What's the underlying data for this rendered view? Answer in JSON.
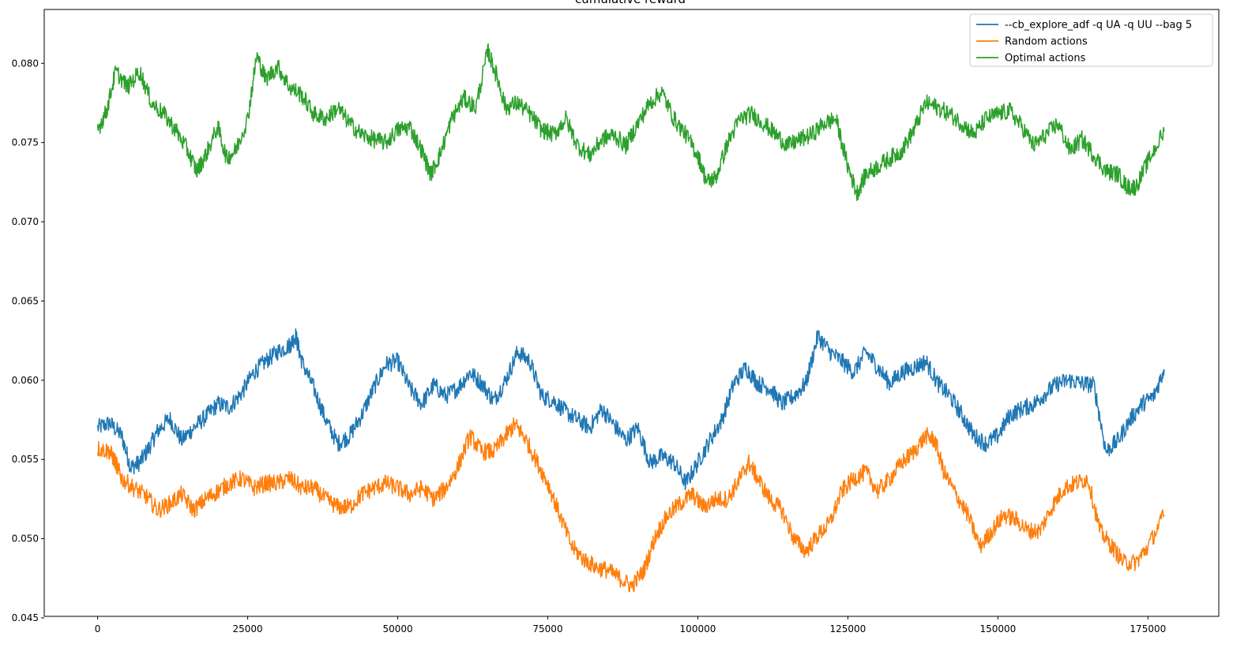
{
  "chart_data": {
    "type": "line",
    "title": "cumulative reward",
    "xlabel": "",
    "ylabel": "",
    "xlim": [
      -8900,
      186800
    ],
    "ylim": [
      0.0451,
      0.0834
    ],
    "xticks": [
      0,
      25000,
      50000,
      75000,
      100000,
      125000,
      150000,
      175000
    ],
    "xtick_labels": [
      "0",
      "25000",
      "50000",
      "75000",
      "100000",
      "125000",
      "150000",
      "175000"
    ],
    "yticks": [
      0.045,
      0.05,
      0.055,
      0.06,
      0.065,
      0.07,
      0.075,
      0.08
    ],
    "ytick_labels": [
      "0.045",
      "0.050",
      "0.055",
      "0.060",
      "0.065",
      "0.070",
      "0.075",
      "0.080"
    ],
    "grid": false,
    "legend_position": "top-right",
    "series": [
      {
        "name": "--cb_explore_adf -q UA -q UU --bag 5",
        "color": "#1f77b4",
        "x": [
          0,
          2000,
          4000,
          5500,
          7000,
          8500,
          10000,
          12000,
          14000,
          16000,
          18000,
          20000,
          22000,
          24000,
          26000,
          28000,
          30000,
          32000,
          33000,
          34000,
          36000,
          38000,
          40000,
          42000,
          44000,
          46000,
          48000,
          50000,
          52000,
          54000,
          56000,
          58000,
          60000,
          62000,
          64000,
          66000,
          68000,
          70000,
          72000,
          74000,
          76000,
          78000,
          80000,
          82000,
          84000,
          86000,
          88000,
          90000,
          92000,
          94000,
          96000,
          98000,
          100000,
          102000,
          104000,
          106000,
          108000,
          110000,
          112000,
          114000,
          116000,
          118000,
          120000,
          122000,
          124000,
          126000,
          128000,
          130000,
          132000,
          134000,
          136000,
          138000,
          140000,
          142000,
          144000,
          146000,
          148000,
          150000,
          152000,
          154000,
          156000,
          158000,
          160000,
          162000,
          164000,
          166000,
          168000,
          170000,
          172000,
          174000,
          176000,
          177700
        ],
        "values": [
          0.057,
          0.0573,
          0.0565,
          0.0545,
          0.0548,
          0.0557,
          0.0568,
          0.0576,
          0.0562,
          0.057,
          0.0577,
          0.0585,
          0.0583,
          0.0592,
          0.0605,
          0.0612,
          0.0618,
          0.0622,
          0.0628,
          0.0612,
          0.0595,
          0.0575,
          0.056,
          0.0565,
          0.0578,
          0.0595,
          0.061,
          0.0612,
          0.0595,
          0.0585,
          0.0597,
          0.059,
          0.0595,
          0.0605,
          0.0598,
          0.0587,
          0.06,
          0.0618,
          0.0612,
          0.059,
          0.0587,
          0.058,
          0.0575,
          0.057,
          0.0582,
          0.0572,
          0.0562,
          0.057,
          0.0548,
          0.0552,
          0.0548,
          0.0535,
          0.0548,
          0.0562,
          0.0575,
          0.0598,
          0.0608,
          0.0598,
          0.0595,
          0.0585,
          0.059,
          0.0598,
          0.0628,
          0.0618,
          0.0612,
          0.0605,
          0.0618,
          0.0608,
          0.0598,
          0.0605,
          0.0608,
          0.0612,
          0.0598,
          0.059,
          0.0578,
          0.0565,
          0.056,
          0.0565,
          0.0578,
          0.0582,
          0.0585,
          0.0592,
          0.0598,
          0.06,
          0.0598,
          0.0597,
          0.0555,
          0.0562,
          0.0575,
          0.0585,
          0.059,
          0.0607
        ]
      },
      {
        "name": "Random actions",
        "color": "#ff7f0e",
        "x": [
          0,
          2000,
          3000,
          4000,
          6000,
          8000,
          10000,
          12000,
          14000,
          16000,
          18000,
          20000,
          22000,
          24000,
          26000,
          28000,
          30000,
          32000,
          34000,
          36000,
          38000,
          40000,
          42000,
          44000,
          46000,
          48000,
          50000,
          52000,
          54000,
          56000,
          58000,
          60000,
          62000,
          64000,
          66000,
          68000,
          69500,
          71000,
          73000,
          75000,
          77000,
          79000,
          81000,
          83000,
          85000,
          87000,
          89000,
          91000,
          93000,
          95000,
          97000,
          99000,
          101000,
          103000,
          105000,
          107000,
          108500,
          110000,
          112000,
          114000,
          116000,
          118000,
          120000,
          122000,
          124000,
          126000,
          128000,
          130000,
          132000,
          134000,
          136000,
          138000,
          139500,
          141000,
          143000,
          145000,
          147000,
          149000,
          151000,
          153000,
          155000,
          157000,
          159000,
          161000,
          163000,
          165000,
          167000,
          169000,
          171000,
          173000,
          175000,
          177700
        ],
        "values": [
          0.0557,
          0.0555,
          0.0548,
          0.0538,
          0.0532,
          0.0527,
          0.0518,
          0.0522,
          0.0528,
          0.0518,
          0.0525,
          0.053,
          0.0535,
          0.0538,
          0.0532,
          0.0535,
          0.0535,
          0.0538,
          0.0532,
          0.0532,
          0.0525,
          0.052,
          0.052,
          0.0528,
          0.0532,
          0.0535,
          0.0532,
          0.0528,
          0.0532,
          0.0525,
          0.0532,
          0.0545,
          0.0565,
          0.0555,
          0.0555,
          0.0565,
          0.0572,
          0.0565,
          0.055,
          0.0535,
          0.0515,
          0.0495,
          0.0487,
          0.0482,
          0.048,
          0.0475,
          0.047,
          0.048,
          0.0502,
          0.0515,
          0.0522,
          0.0528,
          0.052,
          0.0525,
          0.0525,
          0.0538,
          0.0548,
          0.0538,
          0.0525,
          0.0518,
          0.05,
          0.0492,
          0.0502,
          0.051,
          0.053,
          0.0538,
          0.0542,
          0.053,
          0.0538,
          0.0548,
          0.0555,
          0.0565,
          0.0562,
          0.0542,
          0.0528,
          0.0515,
          0.0495,
          0.0505,
          0.0515,
          0.0512,
          0.0505,
          0.0505,
          0.052,
          0.0532,
          0.0535,
          0.0538,
          0.0505,
          0.0495,
          0.0485,
          0.0485,
          0.0495,
          0.0515
        ]
      },
      {
        "name": "Optimal actions",
        "color": "#2ca02c",
        "x": [
          0,
          1500,
          3000,
          5000,
          7000,
          9000,
          11000,
          13000,
          15000,
          16500,
          18000,
          20000,
          21500,
          23000,
          25000,
          26500,
          28000,
          30000,
          32000,
          34000,
          36000,
          38000,
          40000,
          42000,
          44000,
          46000,
          48000,
          50000,
          52000,
          54000,
          55500,
          57000,
          59000,
          61000,
          63000,
          65000,
          66500,
          68000,
          70000,
          72000,
          74000,
          76000,
          78000,
          80000,
          82000,
          84000,
          86000,
          88000,
          90000,
          92000,
          94000,
          96000,
          98000,
          100000,
          101500,
          103000,
          105000,
          107000,
          109000,
          111000,
          113000,
          115000,
          117000,
          119000,
          121000,
          123000,
          125000,
          126500,
          128000,
          130000,
          132000,
          134000,
          136000,
          138000,
          140000,
          142000,
          144000,
          146000,
          148000,
          150000,
          152000,
          154000,
          156000,
          158000,
          160000,
          162000,
          164000,
          166000,
          168000,
          170000,
          171500,
          173000,
          175000,
          177700
        ],
        "values": [
          0.0758,
          0.077,
          0.0795,
          0.0785,
          0.0795,
          0.0775,
          0.0768,
          0.0758,
          0.0745,
          0.0732,
          0.0742,
          0.076,
          0.074,
          0.0745,
          0.0765,
          0.0805,
          0.079,
          0.0798,
          0.0785,
          0.078,
          0.0768,
          0.0765,
          0.0772,
          0.0762,
          0.0755,
          0.0752,
          0.075,
          0.0758,
          0.076,
          0.0745,
          0.073,
          0.0742,
          0.0765,
          0.0778,
          0.0772,
          0.0808,
          0.0792,
          0.0772,
          0.0775,
          0.0768,
          0.0758,
          0.0755,
          0.0765,
          0.0748,
          0.0742,
          0.0752,
          0.0755,
          0.0748,
          0.0762,
          0.0775,
          0.0782,
          0.0765,
          0.0755,
          0.0742,
          0.0725,
          0.0728,
          0.075,
          0.0765,
          0.0768,
          0.0762,
          0.0755,
          0.0748,
          0.0752,
          0.0755,
          0.0762,
          0.0765,
          0.0735,
          0.0718,
          0.073,
          0.0735,
          0.074,
          0.0745,
          0.0758,
          0.0775,
          0.0772,
          0.0768,
          0.0762,
          0.0755,
          0.0765,
          0.0768,
          0.077,
          0.076,
          0.0748,
          0.0755,
          0.0762,
          0.0745,
          0.0752,
          0.0742,
          0.0732,
          0.073,
          0.0722,
          0.0722,
          0.0738,
          0.0757
        ]
      }
    ]
  }
}
